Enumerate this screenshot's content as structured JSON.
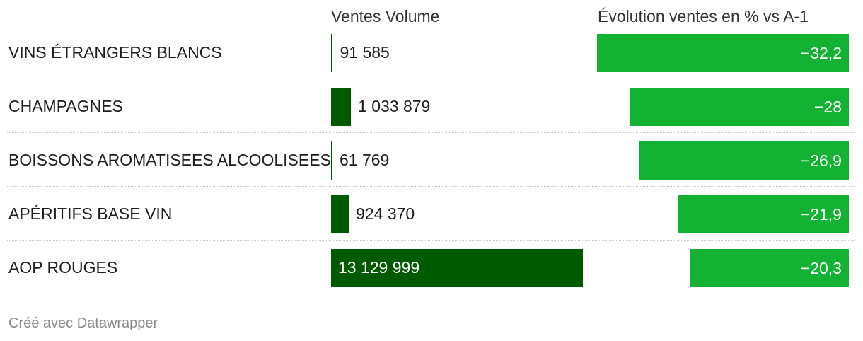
{
  "headers": {
    "volume": "Ventes Volume",
    "evolution": "Évolution ventes en % vs A-1"
  },
  "credit": "Créé avec Datawrapper",
  "colors": {
    "volume_bar": "#005a00",
    "evolution_bar": "#14b232"
  },
  "chart_data": {
    "type": "bar",
    "categories": [
      "VINS ÉTRANGERS BLANCS",
      "CHAMPAGNES",
      "BOISSONS AROMATISEES ALCOOLISEES",
      "APÉRITIFS BASE VIN",
      "AOP ROUGES"
    ],
    "series": [
      {
        "name": "Ventes Volume",
        "values": [
          91585,
          1033879,
          61769,
          924370,
          13129999
        ],
        "labels": [
          "91 585",
          "1 033 879",
          "61 769",
          "924 370",
          "13 129 999"
        ]
      },
      {
        "name": "Évolution ventes en % vs A-1",
        "values": [
          -32.2,
          -28,
          -26.9,
          -21.9,
          -20.3
        ],
        "labels": [
          "−32,2",
          "−28",
          "−26,9",
          "−21,9",
          "−20,3"
        ]
      }
    ]
  }
}
